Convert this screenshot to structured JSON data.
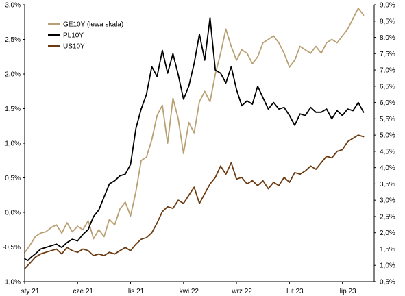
{
  "chart_data": {
    "type": "line",
    "title": "",
    "xlabel": "",
    "ylabel": "",
    "x_ticks": [
      "sty 21",
      "cze 21",
      "lis 21",
      "kwi 22",
      "wrz 22",
      "lut 23",
      "lip 23"
    ],
    "left_axis": {
      "ylim": [
        -1.0,
        3.0
      ],
      "ticks": [
        -1.0,
        -0.5,
        0.0,
        0.5,
        1.0,
        1.5,
        2.0,
        2.5,
        3.0
      ],
      "tick_labels": [
        "-1,0%",
        "-0,5%",
        "0,0%",
        "0,5%",
        "1,0%",
        "1,5%",
        "2,0%",
        "2,5%",
        "3,0%"
      ],
      "color": "#b8a072"
    },
    "right_axis": {
      "ylim": [
        0.5,
        9.0
      ],
      "ticks": [
        0.5,
        1.0,
        1.5,
        2.0,
        2.5,
        3.0,
        3.5,
        4.0,
        4.5,
        5.0,
        5.5,
        6.0,
        6.5,
        7.0,
        7.5,
        8.0,
        8.5,
        9.0
      ],
      "tick_labels": [
        "0,5%",
        "1,0%",
        "1,5%",
        "2,0%",
        "2,5%",
        "3,0%",
        "3,5%",
        "4,0%",
        "4,5%",
        "5,0%",
        "5,5%",
        "6,0%",
        "6,5%",
        "7,0%",
        "7,5%",
        "8,0%",
        "8,5%",
        "9,0%"
      ],
      "color": "#7a4a1e"
    },
    "grid": false,
    "legend_position": "top-left",
    "series": [
      {
        "name": "GE10Y (lewa skala)",
        "axis": "left",
        "color": "#b8a072",
        "x": [
          0,
          0.3,
          0.6,
          1,
          1.5,
          2,
          2.5,
          3,
          3.5,
          4,
          4.5,
          5,
          5.5,
          6,
          6.5,
          7,
          7.5,
          8,
          8.5,
          9,
          9.5,
          10,
          10.5,
          11,
          11.5,
          12,
          12.5,
          13,
          13.5,
          14,
          14.5,
          15,
          15.5,
          16,
          16.5,
          17,
          17.5,
          18,
          18.5,
          19,
          19.5,
          20,
          20.5,
          21,
          21.5,
          22,
          22.5,
          23,
          23.5,
          24,
          24.5,
          25,
          25.5,
          26,
          26.5,
          27,
          27.5,
          28,
          28.5,
          29,
          29.5,
          30,
          30.5,
          31,
          31.5,
          32
        ],
        "y": [
          -0.58,
          -0.52,
          -0.45,
          -0.35,
          -0.3,
          -0.28,
          -0.22,
          -0.18,
          -0.3,
          -0.15,
          -0.28,
          -0.2,
          -0.25,
          -0.12,
          -0.38,
          -0.25,
          -0.35,
          -0.1,
          -0.18,
          0.05,
          0.15,
          -0.05,
          0.3,
          0.75,
          0.8,
          1.05,
          1.4,
          1.55,
          1.0,
          1.65,
          1.35,
          0.85,
          1.3,
          1.15,
          1.6,
          1.75,
          1.6,
          2.0,
          2.3,
          2.65,
          2.4,
          2.2,
          2.35,
          2.3,
          2.15,
          2.25,
          2.45,
          2.5,
          2.55,
          2.45,
          2.3,
          2.1,
          2.2,
          2.4,
          2.35,
          2.3,
          2.4,
          2.3,
          2.45,
          2.5,
          2.45,
          2.55,
          2.65,
          2.8,
          2.95,
          2.85
        ]
      },
      {
        "name": "PL10Y",
        "axis": "right",
        "color": "#000000",
        "x": [
          0,
          0.3,
          0.6,
          1,
          1.5,
          2,
          2.5,
          3,
          3.5,
          4,
          4.5,
          5,
          5.5,
          6,
          6.5,
          7,
          7.5,
          8,
          8.5,
          9,
          9.5,
          10,
          10.5,
          11,
          11.5,
          12,
          12.5,
          13,
          13.5,
          14,
          14.5,
          15,
          15.5,
          16,
          16.5,
          17,
          17.5,
          18,
          18.5,
          19,
          19.5,
          20,
          20.5,
          21,
          21.5,
          22,
          22.5,
          23,
          23.5,
          24,
          24.5,
          25,
          25.5,
          26,
          26.5,
          27,
          27.5,
          28,
          28.5,
          29,
          29.5,
          30,
          30.5,
          31,
          31.5,
          32
        ],
        "y": [
          1.2,
          1.15,
          1.25,
          1.35,
          1.5,
          1.55,
          1.6,
          1.65,
          1.55,
          1.7,
          1.8,
          1.75,
          1.95,
          2.1,
          2.5,
          2.7,
          3.1,
          3.5,
          3.6,
          3.75,
          3.8,
          4.1,
          5.2,
          5.8,
          6.25,
          7.1,
          6.8,
          7.6,
          6.9,
          7.5,
          6.85,
          6.1,
          6.5,
          7.2,
          8.1,
          7.3,
          8.6,
          7.0,
          6.9,
          6.6,
          7.1,
          6.4,
          5.9,
          6.05,
          5.95,
          6.5,
          6.15,
          5.8,
          6.0,
          5.8,
          5.85,
          5.6,
          5.3,
          5.65,
          5.6,
          5.85,
          5.7,
          5.7,
          5.8,
          5.5,
          5.75,
          5.6,
          5.8,
          5.75,
          6.0,
          5.7
        ]
      },
      {
        "name": "US10Y",
        "axis": "right",
        "color": "#6b3a10",
        "x": [
          0,
          0.3,
          0.6,
          1,
          1.5,
          2,
          2.5,
          3,
          3.5,
          4,
          4.5,
          5,
          5.5,
          6,
          6.5,
          7,
          7.5,
          8,
          8.5,
          9,
          9.5,
          10,
          10.5,
          11,
          11.5,
          12,
          12.5,
          13,
          13.5,
          14,
          14.5,
          15,
          15.5,
          16,
          16.5,
          17,
          17.5,
          18,
          18.5,
          19,
          19.5,
          20,
          20.5,
          21,
          21.5,
          22,
          22.5,
          23,
          23.5,
          24,
          24.5,
          25,
          25.5,
          26,
          26.5,
          27,
          27.5,
          28,
          28.5,
          29,
          29.5,
          30,
          30.5,
          31,
          31.5,
          32
        ],
        "y": [
          0.9,
          1.0,
          1.1,
          1.25,
          1.35,
          1.4,
          1.45,
          1.5,
          1.35,
          1.55,
          1.45,
          1.4,
          1.5,
          1.45,
          1.3,
          1.35,
          1.3,
          1.4,
          1.35,
          1.45,
          1.55,
          1.45,
          1.65,
          1.8,
          1.85,
          2.0,
          2.3,
          2.65,
          2.8,
          2.75,
          3.0,
          2.9,
          3.15,
          3.4,
          2.9,
          3.2,
          3.5,
          3.7,
          4.05,
          3.8,
          4.15,
          3.65,
          3.7,
          3.5,
          3.6,
          3.45,
          3.6,
          3.35,
          3.55,
          3.45,
          3.7,
          3.55,
          3.85,
          3.8,
          3.9,
          4.05,
          3.95,
          4.15,
          4.35,
          4.3,
          4.5,
          4.55,
          4.8,
          4.9,
          5.0,
          4.95
        ]
      }
    ]
  }
}
